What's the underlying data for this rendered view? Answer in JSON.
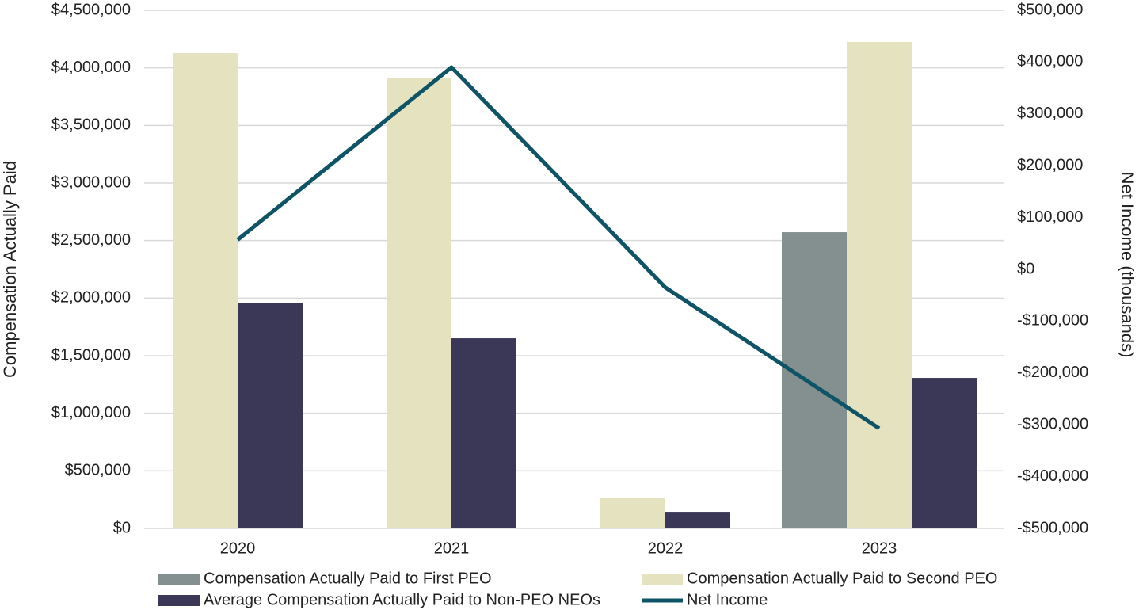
{
  "chart_data": {
    "type": "bar",
    "categories": [
      "2020",
      "2021",
      "2022",
      "2023"
    ],
    "series": [
      {
        "name": "Compensation Actually Paid to First PEO",
        "color": "#84908f",
        "values": [
          null,
          null,
          null,
          2573000
        ]
      },
      {
        "name": "Compensation Actually Paid to Second PEO",
        "color": "#e5e2c0",
        "values": [
          4128000,
          3915000,
          268000,
          4225000
        ]
      },
      {
        "name": "Average Compensation Actually Paid to Non-PEO NEOs",
        "color": "#3a3757",
        "values": [
          1961000,
          1651000,
          144000,
          1307000
        ]
      },
      {
        "name": "Net Income",
        "color": "#0f5466",
        "axis": "y2",
        "type": "line",
        "values": [
          57000,
          390000,
          -35000,
          -307000
        ]
      }
    ],
    "y_label": "Compensation Actually Paid",
    "y2_label": "Net Income (thousands)",
    "ylim": [
      0,
      4500000
    ],
    "yticks": [
      {
        "value": 0,
        "label": "$0"
      },
      {
        "value": 500000,
        "label": "$500,000"
      },
      {
        "value": 1000000,
        "label": "$1,000,000"
      },
      {
        "value": 1500000,
        "label": "$1,500,000"
      },
      {
        "value": 2000000,
        "label": "$2,000,000"
      },
      {
        "value": 2500000,
        "label": "$2,500,000"
      },
      {
        "value": 3000000,
        "label": "$3,000,000"
      },
      {
        "value": 3500000,
        "label": "$3,500,000"
      },
      {
        "value": 4000000,
        "label": "$4,000,000"
      },
      {
        "value": 4500000,
        "label": "$4,500,000"
      }
    ],
    "y2lim": [
      -500000,
      500000
    ],
    "y2ticks": [
      {
        "value": -500000,
        "label": "-$500,000"
      },
      {
        "value": -400000,
        "label": "-$400,000"
      },
      {
        "value": -300000,
        "label": "-$300,000"
      },
      {
        "value": -200000,
        "label": "-$200,000"
      },
      {
        "value": -100000,
        "label": "-$100,000"
      },
      {
        "value": 0,
        "label": "$0"
      },
      {
        "value": 100000,
        "label": "$100,000"
      },
      {
        "value": 200000,
        "label": "$200,000"
      },
      {
        "value": 300000,
        "label": "$300,000"
      },
      {
        "value": 400000,
        "label": "$400,000"
      },
      {
        "value": 500000,
        "label": "$500,000"
      }
    ],
    "grid": true,
    "legend": "bottom"
  }
}
